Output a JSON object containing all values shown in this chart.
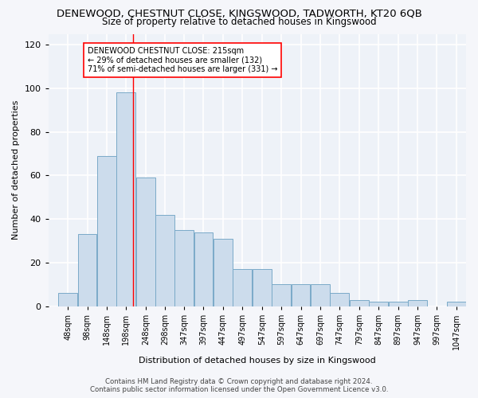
{
  "title": "DENEWOOD, CHESTNUT CLOSE, KINGSWOOD, TADWORTH, KT20 6QB",
  "subtitle": "Size of property relative to detached houses in Kingswood",
  "xlabel": "Distribution of detached houses by size in Kingswood",
  "ylabel": "Number of detached properties",
  "bar_color": "#ccdcec",
  "bar_edge_color": "#7aaac8",
  "bg_color": "#eef2f8",
  "fig_color": "#f5f6fa",
  "grid_color": "#ffffff",
  "categories": [
    "48sqm",
    "98sqm",
    "148sqm",
    "198sqm",
    "248sqm",
    "298sqm",
    "347sqm",
    "397sqm",
    "447sqm",
    "497sqm",
    "547sqm",
    "597sqm",
    "647sqm",
    "697sqm",
    "747sqm",
    "797sqm",
    "847sqm",
    "897sqm",
    "947sqm",
    "997sqm",
    "1047sqm"
  ],
  "values": [
    6,
    33,
    69,
    98,
    59,
    42,
    35,
    34,
    31,
    17,
    17,
    10,
    10,
    10,
    6,
    3,
    2,
    2,
    3,
    0,
    2
  ],
  "ylim": [
    0,
    125
  ],
  "yticks": [
    0,
    20,
    40,
    60,
    80,
    100,
    120
  ],
  "marker_value": 215,
  "annotation_line1": "DENEWOOD CHESTNUT CLOSE: 215sqm",
  "annotation_line2": "← 29% of detached houses are smaller (132)",
  "annotation_line3": "71% of semi-detached houses are larger (331) →",
  "footer_line1": "Contains HM Land Registry data © Crown copyright and database right 2024.",
  "footer_line2": "Contains public sector information licensed under the Open Government Licence v3.0.",
  "bin_width": 50,
  "bin_centers": [
    48,
    98,
    148,
    198,
    248,
    298,
    347,
    397,
    447,
    497,
    547,
    597,
    647,
    697,
    747,
    797,
    847,
    897,
    947,
    997,
    1047
  ]
}
